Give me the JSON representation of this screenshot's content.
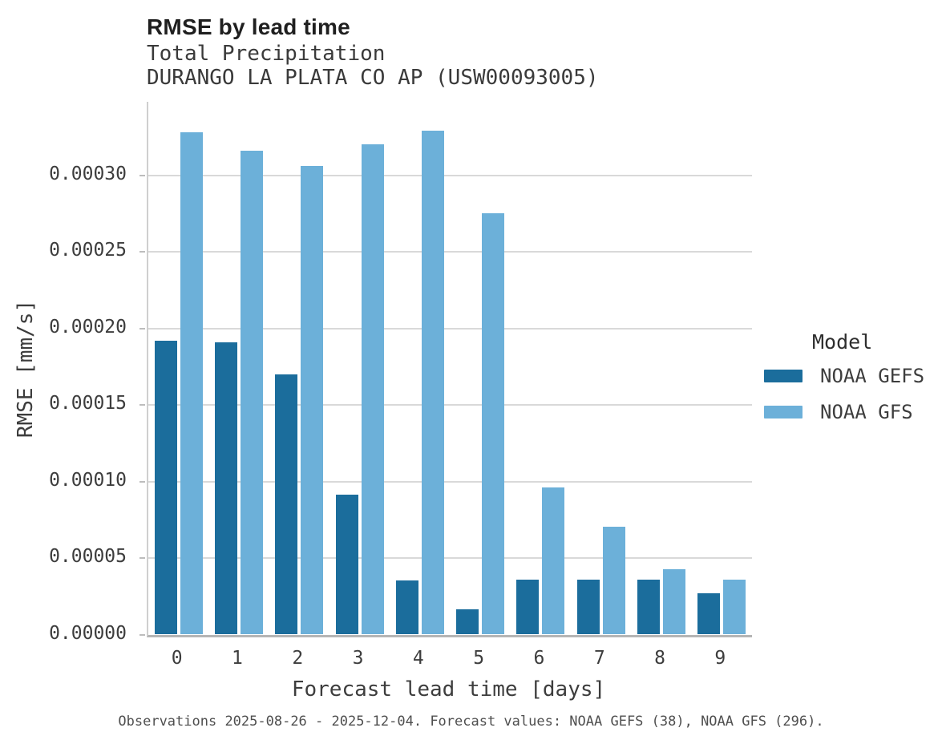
{
  "chart_data": {
    "type": "bar",
    "title": "RMSE by lead time",
    "subtitle_line1": "Total Precipitation",
    "subtitle_line2": "DURANGO LA PLATA CO AP (USW00093005)",
    "categories": [
      "0",
      "1",
      "2",
      "3",
      "4",
      "5",
      "6",
      "7",
      "8",
      "9"
    ],
    "series": [
      {
        "name": "NOAA GEFS",
        "color": "#1b6d9c",
        "values": [
          0.000192,
          0.000191,
          0.00017,
          9.14e-05,
          3.55e-05,
          1.65e-05,
          3.58e-05,
          3.6e-05,
          3.58e-05,
          2.7e-05
        ]
      },
      {
        "name": "NOAA GFS",
        "color": "#6cb0d9",
        "values": [
          0.000328,
          0.000316,
          0.000306,
          0.00032,
          0.000329,
          0.000275,
          9.63e-05,
          7.03e-05,
          4.28e-05,
          3.58e-05
        ]
      }
    ],
    "xlabel": "Forecast lead time [days]",
    "ylabel": "RMSE [mm/s]",
    "ylim": [
      0,
      0.000348
    ],
    "yticks": [
      0,
      5e-05,
      0.0001,
      0.00015,
      0.0002,
      0.00025,
      0.0003
    ],
    "ytick_labels": [
      "0.00000",
      "0.00005",
      "0.00010",
      "0.00015",
      "0.00020",
      "0.00025",
      "0.00030"
    ],
    "grid": true,
    "legend_title": "Model",
    "legend_position": "right",
    "caption": "Observations 2025-08-26 - 2025-12-04. Forecast values: NOAA GEFS (38), NOAA GFS (296)."
  }
}
